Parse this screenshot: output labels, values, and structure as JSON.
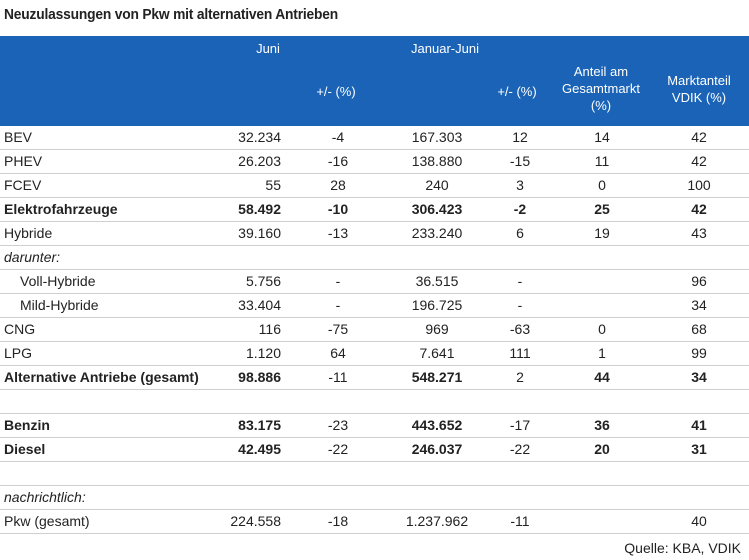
{
  "title": "Neuzulassungen von Pkw mit alternativen Antrieben",
  "header": {
    "juni": "Juni",
    "januar_juni": "Januar-Juni",
    "change1": "+/- (%)",
    "change2": "+/- (%)",
    "anteil": "Anteil am\nGesamtmarkt\n(%)",
    "marktanteil": "Marktanteil\nVDIK (%)"
  },
  "rows": [
    {
      "label": "BEV",
      "juni": "32.234",
      "chg1": "-4",
      "jj": "167.303",
      "chg2": "12",
      "anteil": "14",
      "vdik": "42"
    },
    {
      "label": "PHEV",
      "juni": "26.203",
      "chg1": "-16",
      "jj": "138.880",
      "chg2": "-15",
      "anteil": "11",
      "vdik": "42"
    },
    {
      "label": "FCEV",
      "juni": "55",
      "chg1": "28",
      "jj": "240",
      "chg2": "3",
      "anteil": "0",
      "vdik": "100"
    },
    {
      "label": "Elektrofahrzeuge",
      "juni": "58.492",
      "chg1": "-10",
      "jj": "306.423",
      "chg2": "-2",
      "anteil": "25",
      "vdik": "42"
    },
    {
      "label": "Hybride",
      "juni": "39.160",
      "chg1": "-13",
      "jj": "233.240",
      "chg2": "6",
      "anteil": "19",
      "vdik": "43"
    },
    {
      "label": "darunter:"
    },
    {
      "label": "Voll-Hybride",
      "juni": "5.756",
      "chg1": "-",
      "jj": "36.515",
      "chg2": "-",
      "anteil": "",
      "vdik": "96"
    },
    {
      "label": "Mild-Hybride",
      "juni": "33.404",
      "chg1": "-",
      "jj": "196.725",
      "chg2": "-",
      "anteil": "",
      "vdik": "34"
    },
    {
      "label": "CNG",
      "juni": "116",
      "chg1": "-75",
      "jj": "969",
      "chg2": "-63",
      "anteil": "0",
      "vdik": "68"
    },
    {
      "label": "LPG",
      "juni": "1.120",
      "chg1": "64",
      "jj": "7.641",
      "chg2": "111",
      "anteil": "1",
      "vdik": "99"
    },
    {
      "label": "Alternative Antriebe (gesamt)",
      "juni": "98.886",
      "chg1": "-11",
      "jj": "548.271",
      "chg2": "2",
      "anteil": "44",
      "vdik": "34"
    },
    {
      "label": ""
    },
    {
      "label": "Benzin",
      "juni": "83.175",
      "chg1": "-23",
      "jj": "443.652",
      "chg2": "-17",
      "anteil": "36",
      "vdik": "41"
    },
    {
      "label": "Diesel",
      "juni": "42.495",
      "chg1": "-22",
      "jj": "246.037",
      "chg2": "-22",
      "anteil": "20",
      "vdik": "31"
    },
    {
      "label": ""
    },
    {
      "label": "nachrichtlich:"
    },
    {
      "label": "Pkw (gesamt)",
      "juni": "224.558",
      "chg1": "-18",
      "jj": "1.237.962",
      "chg2": "-11",
      "anteil": "",
      "vdik": "40"
    }
  ],
  "source": "Quelle: KBA, VDIK"
}
